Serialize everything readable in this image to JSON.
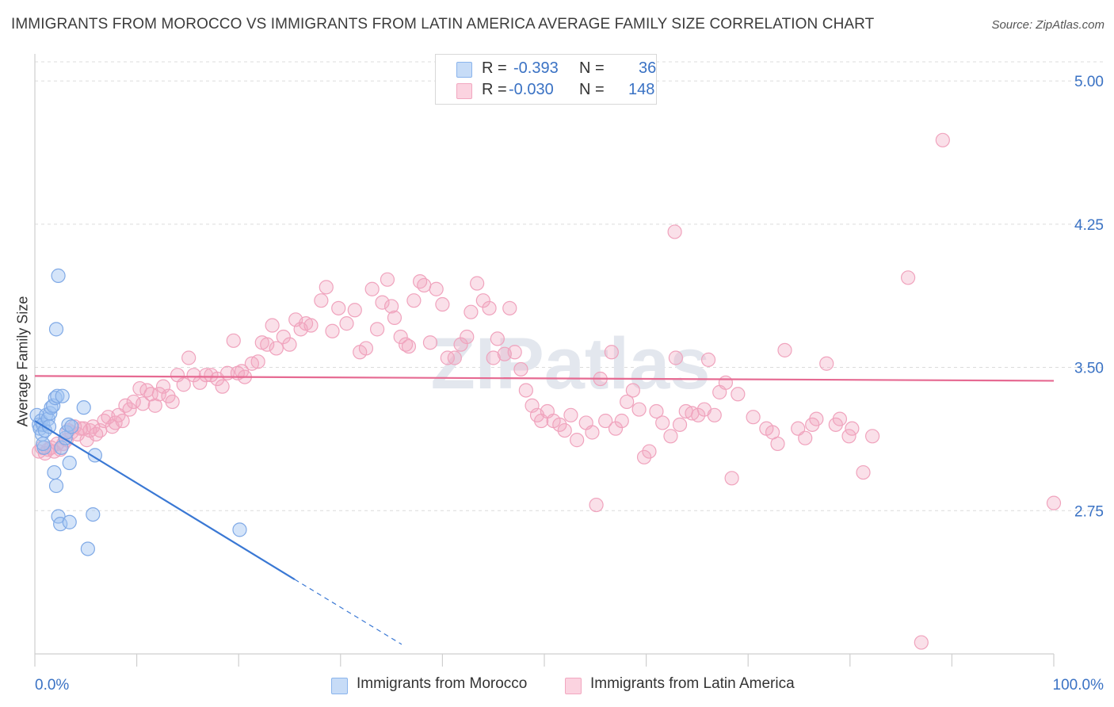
{
  "title": "IMMIGRANTS FROM MOROCCO VS IMMIGRANTS FROM LATIN AMERICA AVERAGE FAMILY SIZE CORRELATION CHART",
  "source": "Source: ZipAtlas.com",
  "watermark": "ZIPatlas",
  "legend": {
    "series1": {
      "r_label": "R =",
      "r_value": "-0.393",
      "n_label": "N =",
      "n_value": "36"
    },
    "series2": {
      "r_label": "R =",
      "r_value": "-0.030",
      "n_label": "N =",
      "n_value": "148"
    }
  },
  "chart_data": {
    "type": "scatter",
    "title": "IMMIGRANTS FROM MOROCCO VS IMMIGRANTS FROM LATIN AMERICA AVERAGE FAMILY SIZE CORRELATION CHART",
    "xlabel": "",
    "ylabel": "Average Family Size",
    "x_tick_labels": [
      "0.0%",
      "100.0%"
    ],
    "y_tick_labels": [
      "5.00",
      "4.25",
      "3.50",
      "2.75"
    ],
    "xlim": [
      0,
      100
    ],
    "ylim": [
      2.0,
      5.1
    ],
    "grid": true,
    "legend_position": "top-center",
    "series": [
      {
        "name": "Immigrants from Morocco",
        "color": "#8ab4ec",
        "line_color": "#3a78d4",
        "points": [
          [
            0.2,
            3.25
          ],
          [
            0.4,
            3.2
          ],
          [
            0.5,
            3.18
          ],
          [
            0.6,
            3.22
          ],
          [
            0.7,
            3.15
          ],
          [
            0.8,
            3.2
          ],
          [
            0.9,
            3.08
          ],
          [
            1.0,
            3.17
          ],
          [
            1.1,
            3.25
          ],
          [
            1.3,
            3.23
          ],
          [
            1.4,
            3.19
          ],
          [
            1.5,
            3.26
          ],
          [
            1.6,
            3.29
          ],
          [
            1.8,
            3.3
          ],
          [
            1.9,
            2.95
          ],
          [
            2.0,
            3.34
          ],
          [
            2.1,
            2.88
          ],
          [
            2.2,
            3.35
          ],
          [
            2.3,
            2.72
          ],
          [
            2.5,
            2.68
          ],
          [
            2.1,
            3.7
          ],
          [
            2.3,
            3.98
          ],
          [
            2.6,
            3.08
          ],
          [
            2.7,
            3.35
          ],
          [
            3.0,
            3.13
          ],
          [
            3.1,
            3.16
          ],
          [
            3.3,
            3.2
          ],
          [
            3.4,
            3.0
          ],
          [
            3.4,
            2.69
          ],
          [
            3.6,
            3.19
          ],
          [
            4.8,
            3.29
          ],
          [
            5.2,
            2.55
          ],
          [
            5.7,
            2.73
          ],
          [
            5.9,
            3.04
          ],
          [
            20.1,
            2.65
          ],
          [
            0.8,
            3.1
          ]
        ],
        "trend": {
          "x": [
            0,
            25.5
          ],
          "y": [
            3.22,
            2.39
          ]
        },
        "trend_dashed": {
          "x": [
            25.5,
            36
          ],
          "y": [
            2.39,
            2.05
          ]
        }
      },
      {
        "name": "Immigrants from Latin America",
        "color": "#f2a7c0",
        "line_color": "#e66a92",
        "points": [
          [
            0.4,
            3.06
          ],
          [
            0.7,
            3.08
          ],
          [
            1.0,
            3.05
          ],
          [
            1.3,
            3.07
          ],
          [
            1.6,
            3.08
          ],
          [
            1.9,
            3.06
          ],
          [
            2.2,
            3.1
          ],
          [
            2.5,
            3.07
          ],
          [
            2.8,
            3.1
          ],
          [
            3.1,
            3.12
          ],
          [
            3.3,
            3.17
          ],
          [
            3.6,
            3.16
          ],
          [
            3.9,
            3.19
          ],
          [
            4.2,
            3.15
          ],
          [
            4.5,
            3.18
          ],
          [
            4.8,
            3.18
          ],
          [
            5.1,
            3.12
          ],
          [
            5.4,
            3.17
          ],
          [
            5.7,
            3.19
          ],
          [
            6.0,
            3.15
          ],
          [
            6.4,
            3.17
          ],
          [
            6.8,
            3.22
          ],
          [
            7.2,
            3.24
          ],
          [
            7.6,
            3.19
          ],
          [
            7.9,
            3.21
          ],
          [
            8.2,
            3.25
          ],
          [
            8.6,
            3.22
          ],
          [
            8.9,
            3.3
          ],
          [
            9.3,
            3.28
          ],
          [
            9.7,
            3.32
          ],
          [
            10.3,
            3.39
          ],
          [
            10.6,
            3.31
          ],
          [
            11.0,
            3.38
          ],
          [
            11.4,
            3.36
          ],
          [
            11.8,
            3.3
          ],
          [
            12.2,
            3.36
          ],
          [
            12.6,
            3.4
          ],
          [
            13.1,
            3.35
          ],
          [
            13.5,
            3.32
          ],
          [
            14.0,
            3.46
          ],
          [
            14.6,
            3.41
          ],
          [
            15.1,
            3.55
          ],
          [
            15.6,
            3.46
          ],
          [
            16.2,
            3.42
          ],
          [
            16.8,
            3.46
          ],
          [
            17.3,
            3.46
          ],
          [
            17.9,
            3.44
          ],
          [
            18.4,
            3.4
          ],
          [
            18.9,
            3.47
          ],
          [
            19.5,
            3.64
          ],
          [
            19.9,
            3.47
          ],
          [
            20.3,
            3.48
          ],
          [
            20.6,
            3.45
          ],
          [
            21.3,
            3.52
          ],
          [
            21.9,
            3.53
          ],
          [
            22.3,
            3.63
          ],
          [
            22.8,
            3.62
          ],
          [
            23.3,
            3.72
          ],
          [
            23.7,
            3.6
          ],
          [
            24.4,
            3.66
          ],
          [
            25.0,
            3.62
          ],
          [
            25.6,
            3.75
          ],
          [
            26.1,
            3.7
          ],
          [
            26.6,
            3.73
          ],
          [
            27.1,
            3.72
          ],
          [
            28.1,
            3.85
          ],
          [
            28.6,
            3.92
          ],
          [
            29.2,
            3.69
          ],
          [
            29.8,
            3.81
          ],
          [
            30.6,
            3.73
          ],
          [
            31.4,
            3.8
          ],
          [
            31.9,
            3.58
          ],
          [
            32.5,
            3.6
          ],
          [
            33.1,
            3.91
          ],
          [
            33.6,
            3.7
          ],
          [
            34.1,
            3.84
          ],
          [
            34.6,
            3.96
          ],
          [
            35.0,
            3.82
          ],
          [
            35.3,
            3.76
          ],
          [
            35.9,
            3.66
          ],
          [
            36.4,
            3.62
          ],
          [
            36.7,
            3.61
          ],
          [
            37.2,
            3.85
          ],
          [
            37.8,
            3.95
          ],
          [
            38.2,
            3.93
          ],
          [
            38.8,
            3.63
          ],
          [
            39.4,
            3.91
          ],
          [
            40.0,
            3.83
          ],
          [
            40.5,
            3.55
          ],
          [
            41.2,
            3.55
          ],
          [
            41.8,
            3.62
          ],
          [
            42.4,
            3.66
          ],
          [
            42.8,
            3.79
          ],
          [
            43.4,
            3.94
          ],
          [
            44.0,
            3.85
          ],
          [
            44.6,
            3.81
          ],
          [
            45.0,
            3.55
          ],
          [
            45.4,
            3.65
          ],
          [
            46.1,
            3.57
          ],
          [
            46.6,
            3.81
          ],
          [
            47.1,
            3.58
          ],
          [
            47.7,
            3.49
          ],
          [
            48.2,
            3.38
          ],
          [
            48.8,
            3.3
          ],
          [
            49.3,
            3.25
          ],
          [
            49.7,
            3.22
          ],
          [
            50.3,
            3.27
          ],
          [
            50.9,
            3.22
          ],
          [
            51.5,
            3.2
          ],
          [
            52.0,
            3.17
          ],
          [
            52.6,
            3.25
          ],
          [
            53.2,
            3.12
          ],
          [
            54.1,
            3.21
          ],
          [
            54.7,
            3.16
          ],
          [
            55.1,
            2.78
          ],
          [
            55.5,
            3.44
          ],
          [
            56.0,
            3.22
          ],
          [
            56.6,
            3.58
          ],
          [
            57.0,
            3.18
          ],
          [
            57.6,
            3.22
          ],
          [
            58.1,
            3.32
          ],
          [
            58.7,
            3.38
          ],
          [
            59.3,
            3.28
          ],
          [
            59.8,
            3.03
          ],
          [
            60.3,
            3.06
          ],
          [
            61.0,
            3.27
          ],
          [
            61.6,
            3.21
          ],
          [
            62.4,
            3.14
          ],
          [
            62.8,
            4.21
          ],
          [
            62.9,
            3.55
          ],
          [
            63.3,
            3.2
          ],
          [
            63.9,
            3.27
          ],
          [
            64.5,
            3.26
          ],
          [
            65.1,
            3.25
          ],
          [
            65.7,
            3.28
          ],
          [
            66.1,
            3.54
          ],
          [
            66.7,
            3.25
          ],
          [
            67.2,
            3.37
          ],
          [
            67.8,
            3.42
          ],
          [
            68.4,
            2.92
          ],
          [
            69.0,
            3.36
          ],
          [
            70.5,
            3.24
          ],
          [
            71.8,
            3.18
          ],
          [
            72.4,
            3.16
          ],
          [
            72.9,
            3.1
          ],
          [
            73.6,
            3.59
          ],
          [
            74.9,
            3.18
          ],
          [
            75.6,
            3.13
          ],
          [
            76.3,
            3.2
          ],
          [
            76.7,
            3.23
          ],
          [
            77.7,
            3.52
          ],
          [
            78.6,
            3.2
          ],
          [
            79.0,
            3.23
          ],
          [
            79.9,
            3.14
          ],
          [
            80.2,
            3.18
          ],
          [
            81.3,
            2.95
          ],
          [
            82.2,
            3.14
          ],
          [
            85.7,
            3.97
          ],
          [
            87.0,
            2.06
          ],
          [
            89.1,
            4.69
          ],
          [
            100.0,
            2.79
          ]
        ],
        "trend": {
          "x": [
            0,
            100
          ],
          "y": [
            3.455,
            3.43
          ]
        }
      }
    ]
  },
  "bottom_legend": [
    "Immigrants from Morocco",
    "Immigrants from Latin America"
  ]
}
